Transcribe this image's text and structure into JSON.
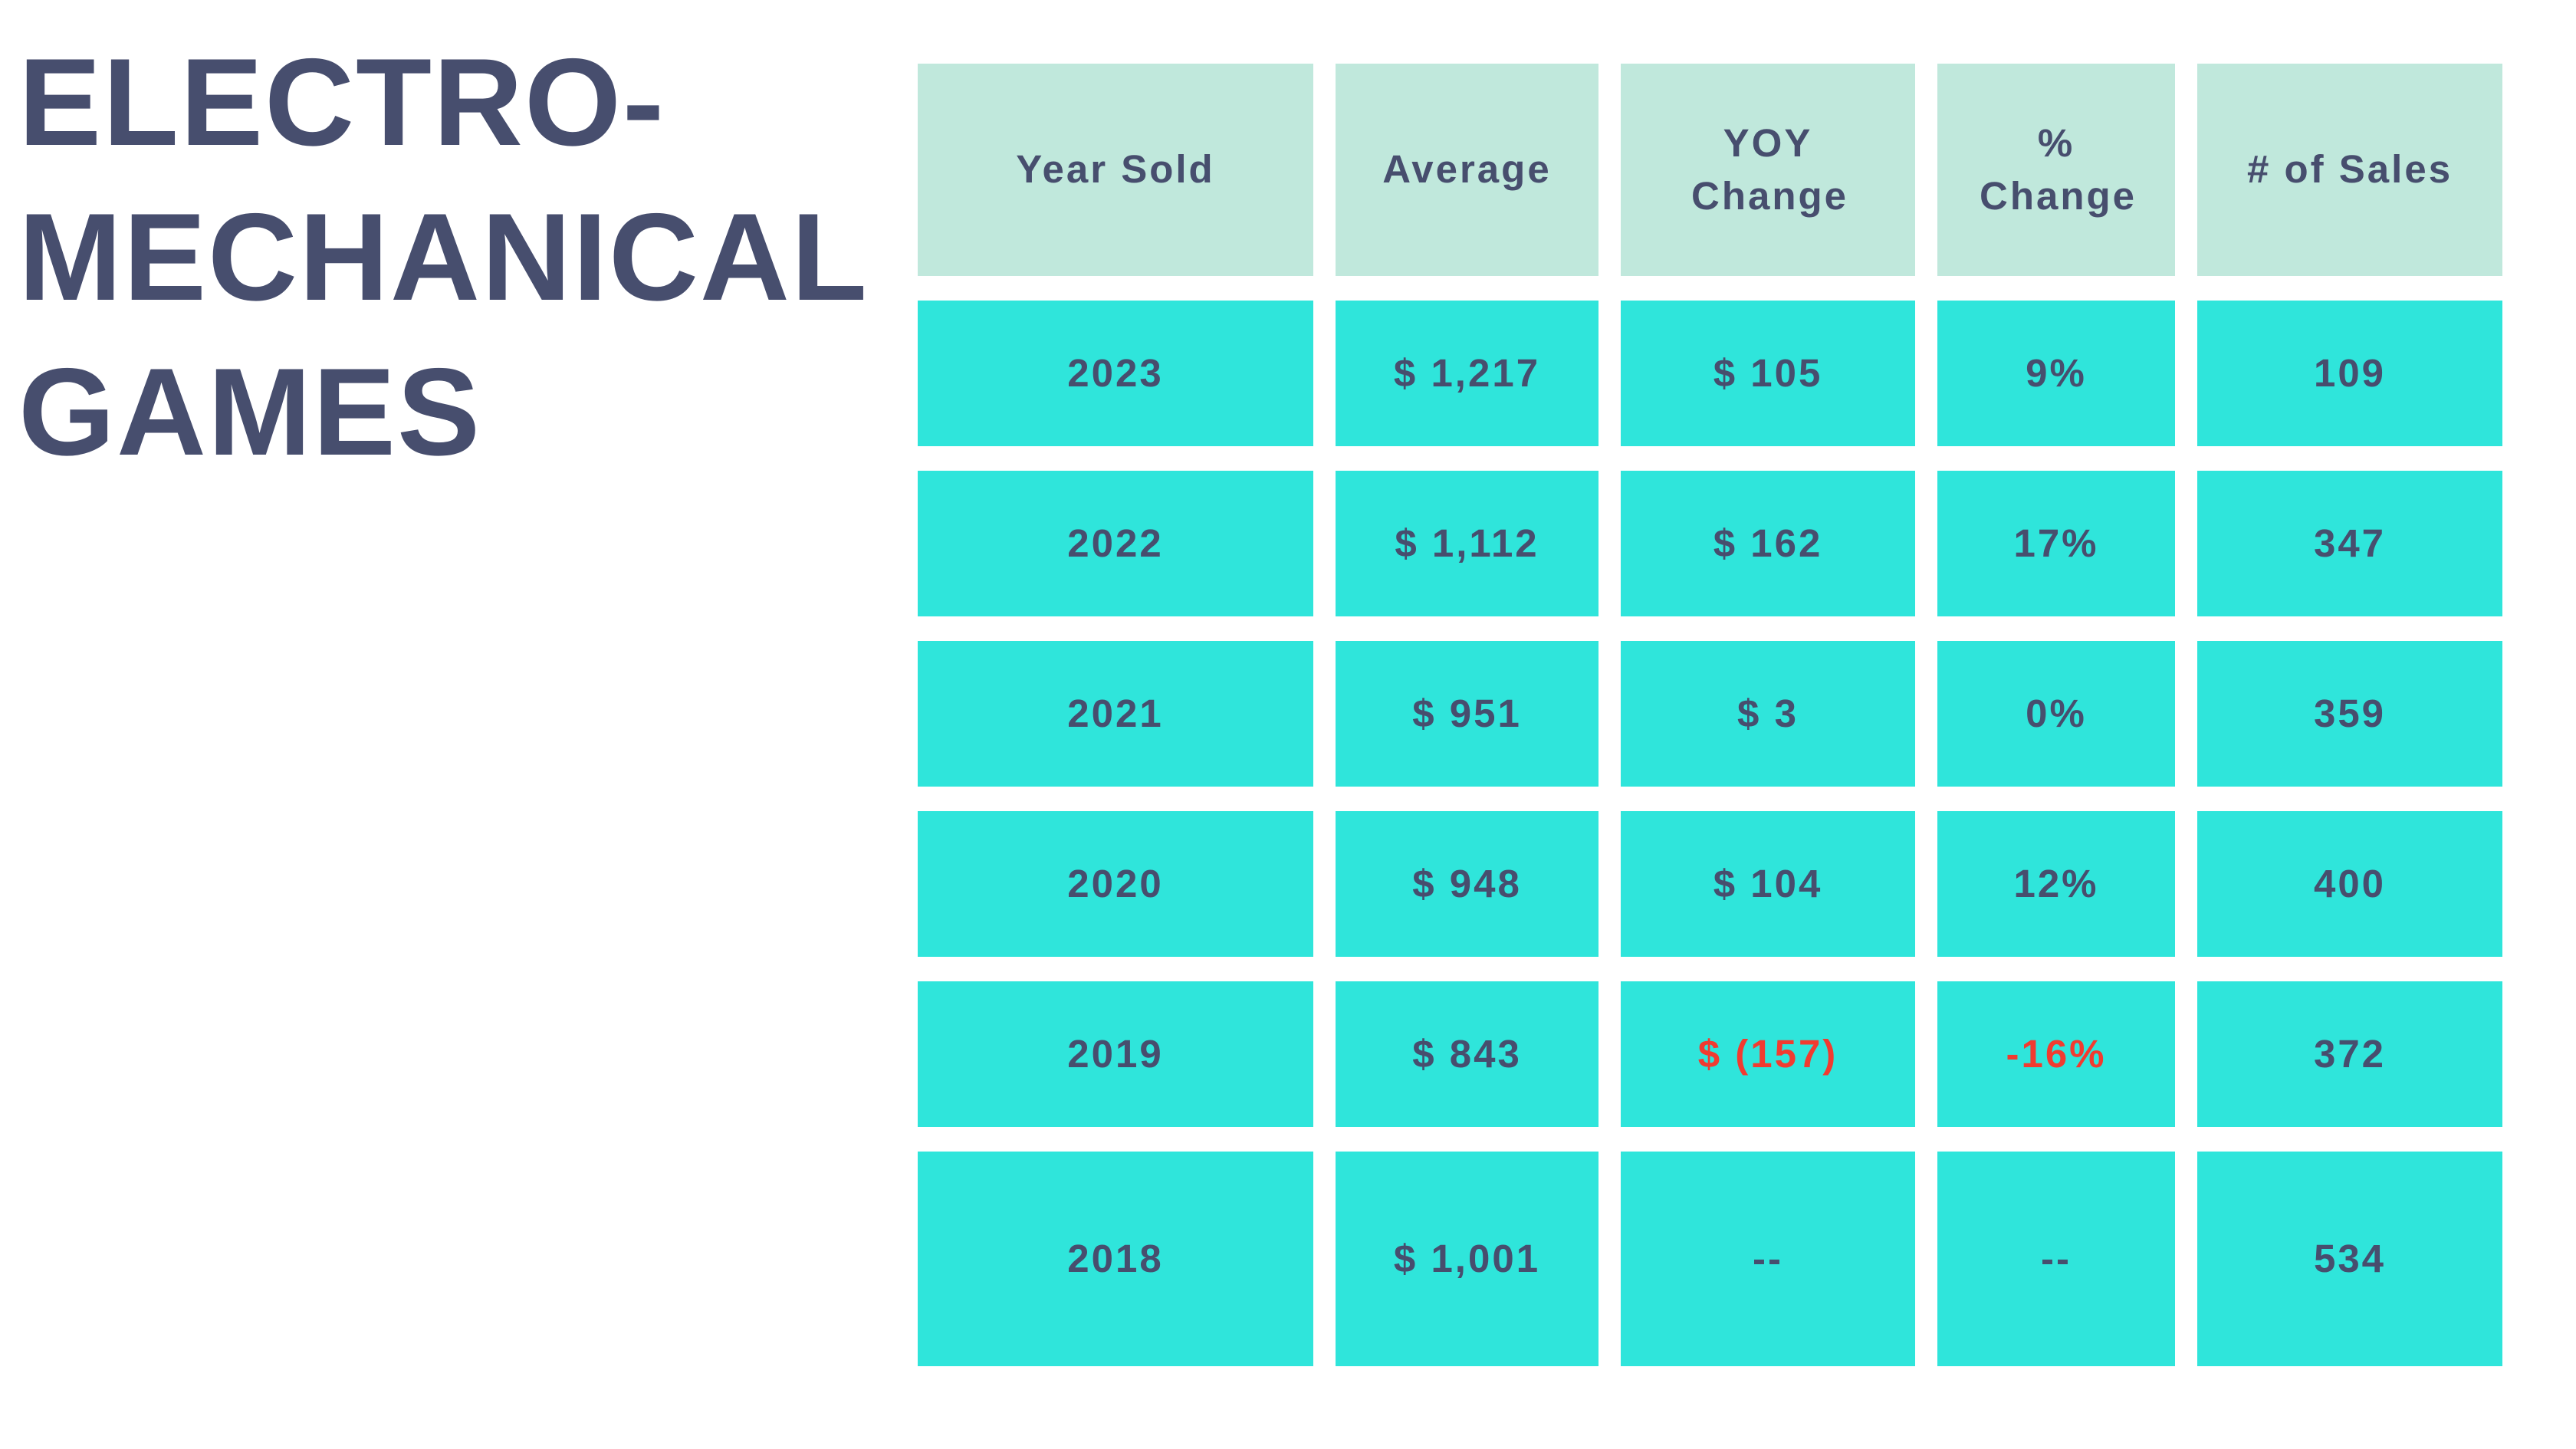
{
  "title": {
    "line1": "ELECTRO-",
    "line2": "MECHANICAL",
    "line3": "GAMES"
  },
  "colors": {
    "background": "#ffffff",
    "header_cell_bg": "#c0e8dc",
    "data_cell_bg": "#2fe5db",
    "text_dark": "#474e6e",
    "text_negative": "#f13b30"
  },
  "table": {
    "columns": [
      "Year Sold",
      "Average",
      "YOY Change",
      "% Change",
      "# of Sales"
    ],
    "rows": [
      [
        "2023",
        "$ 1,217",
        "$ 105",
        "9%",
        "109"
      ],
      [
        "2022",
        "$ 1,112",
        "$ 162",
        "17%",
        "347"
      ],
      [
        "2021",
        "$ 951",
        "$ 3",
        "0%",
        "359"
      ],
      [
        "2020",
        "$ 948",
        "$ 104",
        "12%",
        "400"
      ],
      [
        "2019",
        "$ 843",
        "$ (157)",
        "-16%",
        "372"
      ],
      [
        "2018",
        "$ 1,001",
        "--",
        "--",
        "534"
      ]
    ]
  },
  "chart_data": {
    "type": "table",
    "title": "ELECTRO-MECHANICAL GAMES",
    "columns": [
      "Year Sold",
      "Average",
      "YOY Change",
      "% Change",
      "# of Sales"
    ],
    "categories": [
      2023,
      2022,
      2021,
      2020,
      2019,
      2018
    ],
    "series": [
      {
        "name": "Average",
        "values": [
          1217,
          1112,
          951,
          948,
          843,
          1001
        ]
      },
      {
        "name": "YOY Change",
        "values": [
          105,
          162,
          3,
          104,
          -157,
          null
        ]
      },
      {
        "name": "% Change",
        "values": [
          9,
          17,
          0,
          12,
          -16,
          null
        ]
      },
      {
        "name": "# of Sales",
        "values": [
          109,
          347,
          359,
          400,
          372,
          534
        ]
      }
    ],
    "notes": "Negative YOY Change and % Change values for 2019 are shown in red; 2018 change cells show -- (no prior year)."
  }
}
